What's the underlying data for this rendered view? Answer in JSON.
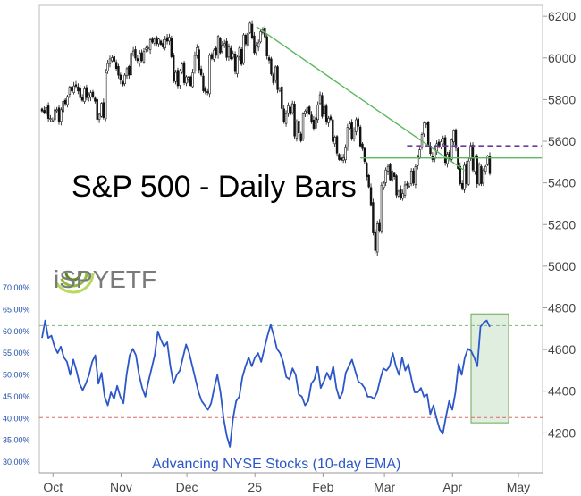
{
  "chart_data": [
    {
      "type": "candlestick",
      "title": "S&P 500 - Daily Bars",
      "y_axis_side": "right",
      "ylim": [
        4150,
        6220
      ],
      "y_ticks": [
        6200,
        6000,
        5800,
        5600,
        5400,
        5200,
        5000,
        4800,
        4600,
        4400,
        4200
      ],
      "x_ticks": [
        "Oct",
        "Nov",
        "Dec",
        "25",
        "Feb",
        "Mar",
        "Apr",
        "May"
      ],
      "x_tick_days": [
        5,
        36,
        66,
        97,
        128,
        156,
        187,
        217
      ],
      "start_date": "2024-09-26",
      "closes": [
        5745,
        5738,
        5762,
        5709,
        5709,
        5699,
        5751,
        5751,
        5695,
        5751,
        5792,
        5780,
        5815,
        5859,
        5842,
        5865,
        5864,
        5841,
        5809,
        5797,
        5851,
        5809,
        5823,
        5833,
        5813,
        5792,
        5705,
        5729,
        5782,
        5713,
        5929,
        5973,
        5995,
        6001,
        5983,
        5949,
        5917,
        5893,
        5870,
        5917,
        5948,
        5917,
        6022,
        6033,
        5999,
        5987,
        6022,
        5987,
        6032,
        6047,
        6049,
        6087,
        6076,
        6090,
        6068,
        6090,
        6065,
        6052,
        6088,
        6080,
        6100,
        6005,
        5889,
        5930,
        5866,
        5937,
        5970,
        5881,
        5909,
        5906,
        5868,
        5928,
        6012,
        6049,
        5943,
        5918,
        5842,
        5838,
        5837,
        6012,
        5997,
        6037,
        6012,
        6103,
        6025,
        6062,
        6069,
        6002,
        6053,
        5996,
        6021,
        5934,
        6004,
        6047,
        5969,
        6110,
        6067,
        6117,
        6167,
        6097,
        6025,
        6060,
        6072,
        6126,
        6134,
        6101,
        6009,
        5989,
        5922,
        5881,
        5956,
        5848,
        5854,
        5757,
        5696,
        5732,
        5770,
        5729,
        5780,
        5625,
        5693,
        5640,
        5602,
        5730,
        5745,
        5760,
        5730,
        5692,
        5662,
        5712,
        5775,
        5823,
        5719,
        5767,
        5695,
        5710,
        5705,
        5599,
        5620,
        5543,
        5512,
        5509,
        5521,
        5568,
        5667,
        5683,
        5612,
        5654,
        5703,
        5672,
        5577,
        5565,
        5503,
        5430,
        5381,
        5295,
        5160,
        5075,
        5203,
        5168,
        5389,
        5398,
        5462,
        5479,
        5415,
        5456,
        5430,
        5342,
        5360,
        5326,
        5349,
        5390,
        5389,
        5385,
        5457,
        5399,
        5477,
        5525,
        5559,
        5633,
        5688,
        5685,
        5579,
        5541,
        5512,
        5560,
        5588,
        5572,
        5597,
        5614,
        5498,
        5538,
        5513,
        5606,
        5650,
        5569,
        5469,
        5396,
        5375,
        5484,
        5396,
        5505,
        5580,
        5462,
        5521,
        5396,
        5489,
        5396,
        5462,
        5479,
        5529,
        5445
      ],
      "trendline": {
        "from": [
          1,
          6150
        ],
        "to": [
          96,
          5490
        ],
        "color": "#5cb85c"
      },
      "horizontal_line": {
        "value": 5520,
        "color": "#5cb85c"
      },
      "dashed_line": {
        "value": 5578,
        "color": "#6a3d9a"
      }
    },
    {
      "type": "line",
      "series": [
        {
          "name": "Advancing NYSE Stocks (10-day EMA)",
          "color": "#2c57c9"
        }
      ],
      "y_axis_side": "left",
      "ylim": [
        30,
        70
      ],
      "y_ticks": [
        "70.00%",
        "65.00%",
        "60.00%",
        "55.00%",
        "50.00%",
        "45.00%",
        "40.00%",
        "35.00%",
        "30.00%"
      ],
      "y_tick_values": [
        70,
        65,
        60,
        55,
        50,
        45,
        40,
        35,
        30
      ],
      "values": [
        58.5,
        62.5,
        58.5,
        59,
        56.5,
        55,
        56.5,
        54,
        53,
        50,
        53.5,
        51,
        48,
        46.5,
        48,
        50,
        53,
        54.5,
        48,
        50.5,
        45,
        43,
        46,
        44.5,
        47.5,
        45,
        43.5,
        50,
        54.5,
        56,
        54.5,
        50,
        47,
        45,
        48.5,
        51.5,
        54.5,
        60,
        58,
        56.5,
        57.5,
        52,
        48,
        50,
        51,
        54,
        57,
        55,
        52,
        49,
        46,
        44,
        43,
        42,
        43.5,
        47,
        50,
        46,
        40,
        36,
        33.5,
        40,
        44,
        45,
        49.5,
        52,
        54,
        52,
        54,
        55,
        53,
        56,
        59,
        61.5,
        59,
        56,
        55,
        53,
        49.5,
        49,
        51.5,
        50,
        45.5,
        45,
        43,
        44,
        48,
        49,
        52,
        47,
        48.5,
        50.5,
        49,
        52,
        47,
        44.5,
        46,
        50.5,
        52,
        53.5,
        51,
        48.5,
        48,
        47,
        45,
        45,
        44.5,
        46,
        49,
        51.5,
        51,
        52,
        55,
        52,
        50,
        54,
        51,
        52.5,
        49,
        46,
        46,
        47,
        45,
        45.5,
        41,
        43,
        40,
        37.5,
        36.5,
        40.5,
        44,
        42,
        46,
        52.5,
        50,
        54,
        56,
        55.5,
        54,
        52,
        61,
        62,
        62.5,
        61
      ],
      "caption": "Advancing NYSE Stocks (10-day EMA)",
      "reference_lines": [
        {
          "value": 61.3,
          "color": "#7fb77e",
          "style": "dashed"
        },
        {
          "value": 40.2,
          "color": "#e06666",
          "style": "dashed"
        }
      ],
      "highlight_box": {
        "from_index": 137,
        "to_index": 149,
        "y_range": [
          39,
          64
        ],
        "color": "#a9d18e"
      }
    }
  ],
  "logo": {
    "text_part1": "iSPY",
    "text_part2": "ETF"
  }
}
